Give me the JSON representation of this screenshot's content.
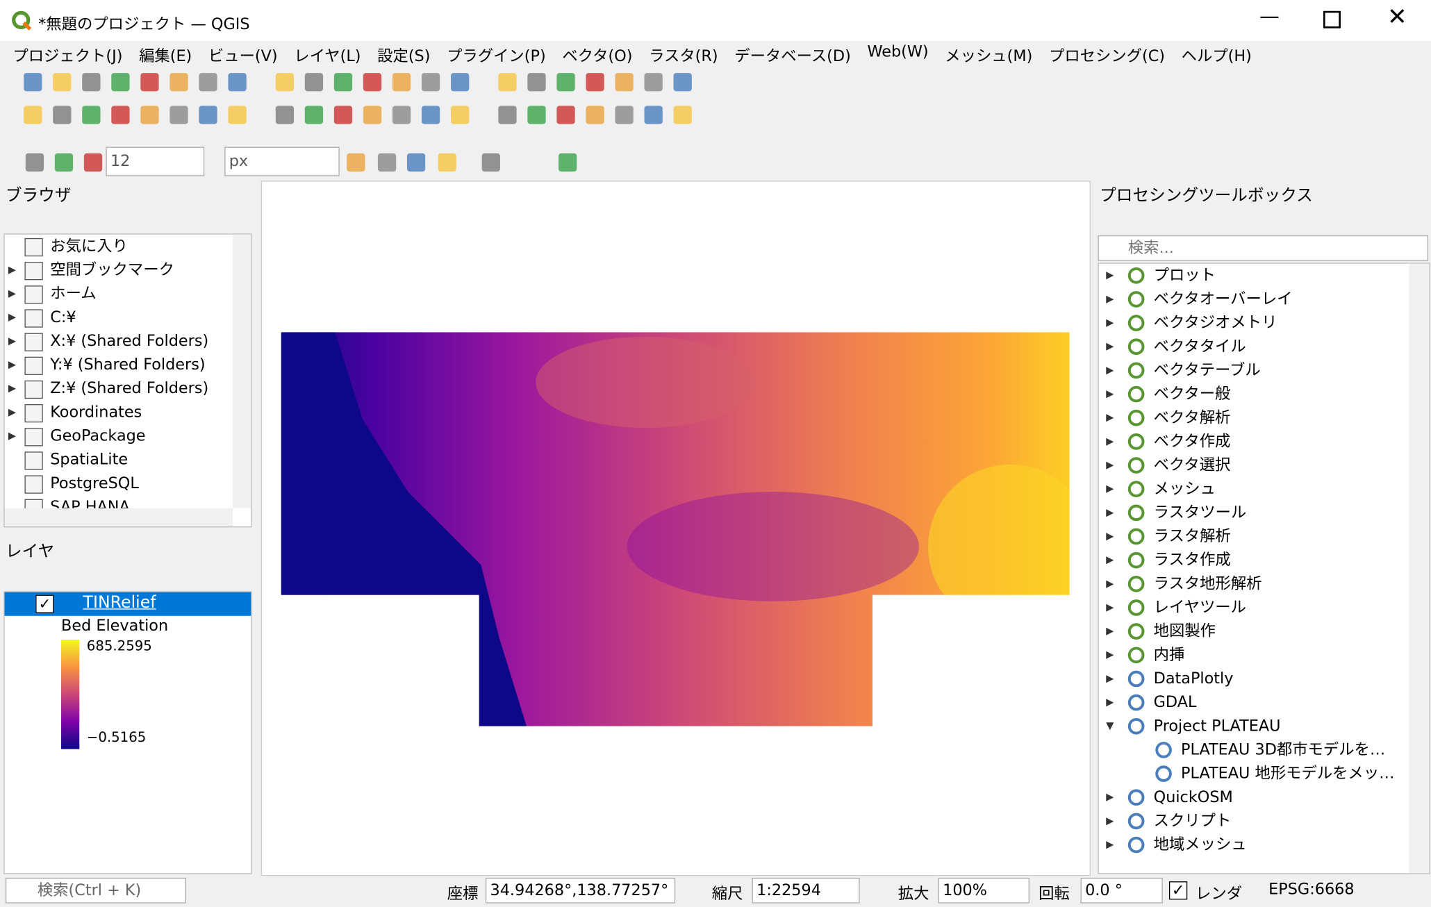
{
  "window": {
    "title": "*無題のプロジェクト — QGIS"
  },
  "menu": [
    "プロジェクト(J)",
    "編集(E)",
    "ビュー(V)",
    "レイヤ(L)",
    "設定(S)",
    "プラグイン(P)",
    "ベクタ(O)",
    "ラスタ(R)",
    "データベース(D)",
    "Web(W)",
    "メッシュ(M)",
    "プロセシング(C)",
    "ヘルプ(H)"
  ],
  "toolbar": {
    "size": "12",
    "unit": "px"
  },
  "browser": {
    "title": "ブラウザ",
    "items": [
      "お気に入り",
      "空間ブックマーク",
      "ホーム",
      "C:¥",
      "X:¥ (Shared Folders)",
      "Y:¥ (Shared Folders)",
      "Z:¥ (Shared Folders)",
      "Koordinates",
      "GeoPackage",
      "SpatiaLite",
      "PostgreSQL",
      "SAP HANA"
    ]
  },
  "layers": {
    "title": "レイヤ",
    "layer": "TINRelief",
    "legend_title": "Bed Elevation",
    "max": "685.2595",
    "min": "−0.5165"
  },
  "toolbox": {
    "title": "プロセシングツールボックス",
    "search": "検索...",
    "items": [
      "プロット",
      "ベクタオーバーレイ",
      "ベクタジオメトリ",
      "ベクタタイル",
      "ベクタテーブル",
      "ベクター般",
      "ベクタ解析",
      "ベクタ作成",
      "ベクタ選択",
      "メッシュ",
      "ラスタツール",
      "ラスタ解析",
      "ラスタ作成",
      "ラスタ地形解析",
      "レイヤツール",
      "地図製作",
      "内挿",
      "DataPlotly",
      "GDAL",
      "Project PLATEAU",
      "QuickOSM",
      "スクリプト",
      "地域メッシュ"
    ],
    "children": [
      "PLATEAU 3D都市モデルを…",
      "PLATEAU 地形モデルをメッ…"
    ]
  },
  "statusbar": {
    "search": "検索(Ctrl + K)",
    "coord_label": "座標",
    "coord": "34.94268°,138.77257°",
    "scale_label": "縮尺",
    "scale": "1:22594",
    "zoom_label": "拡大",
    "zoom": "100%",
    "rotation_label": "回転",
    "rotation": "0.0 °",
    "render": "レンダ",
    "crs": "EPSG:6668"
  }
}
